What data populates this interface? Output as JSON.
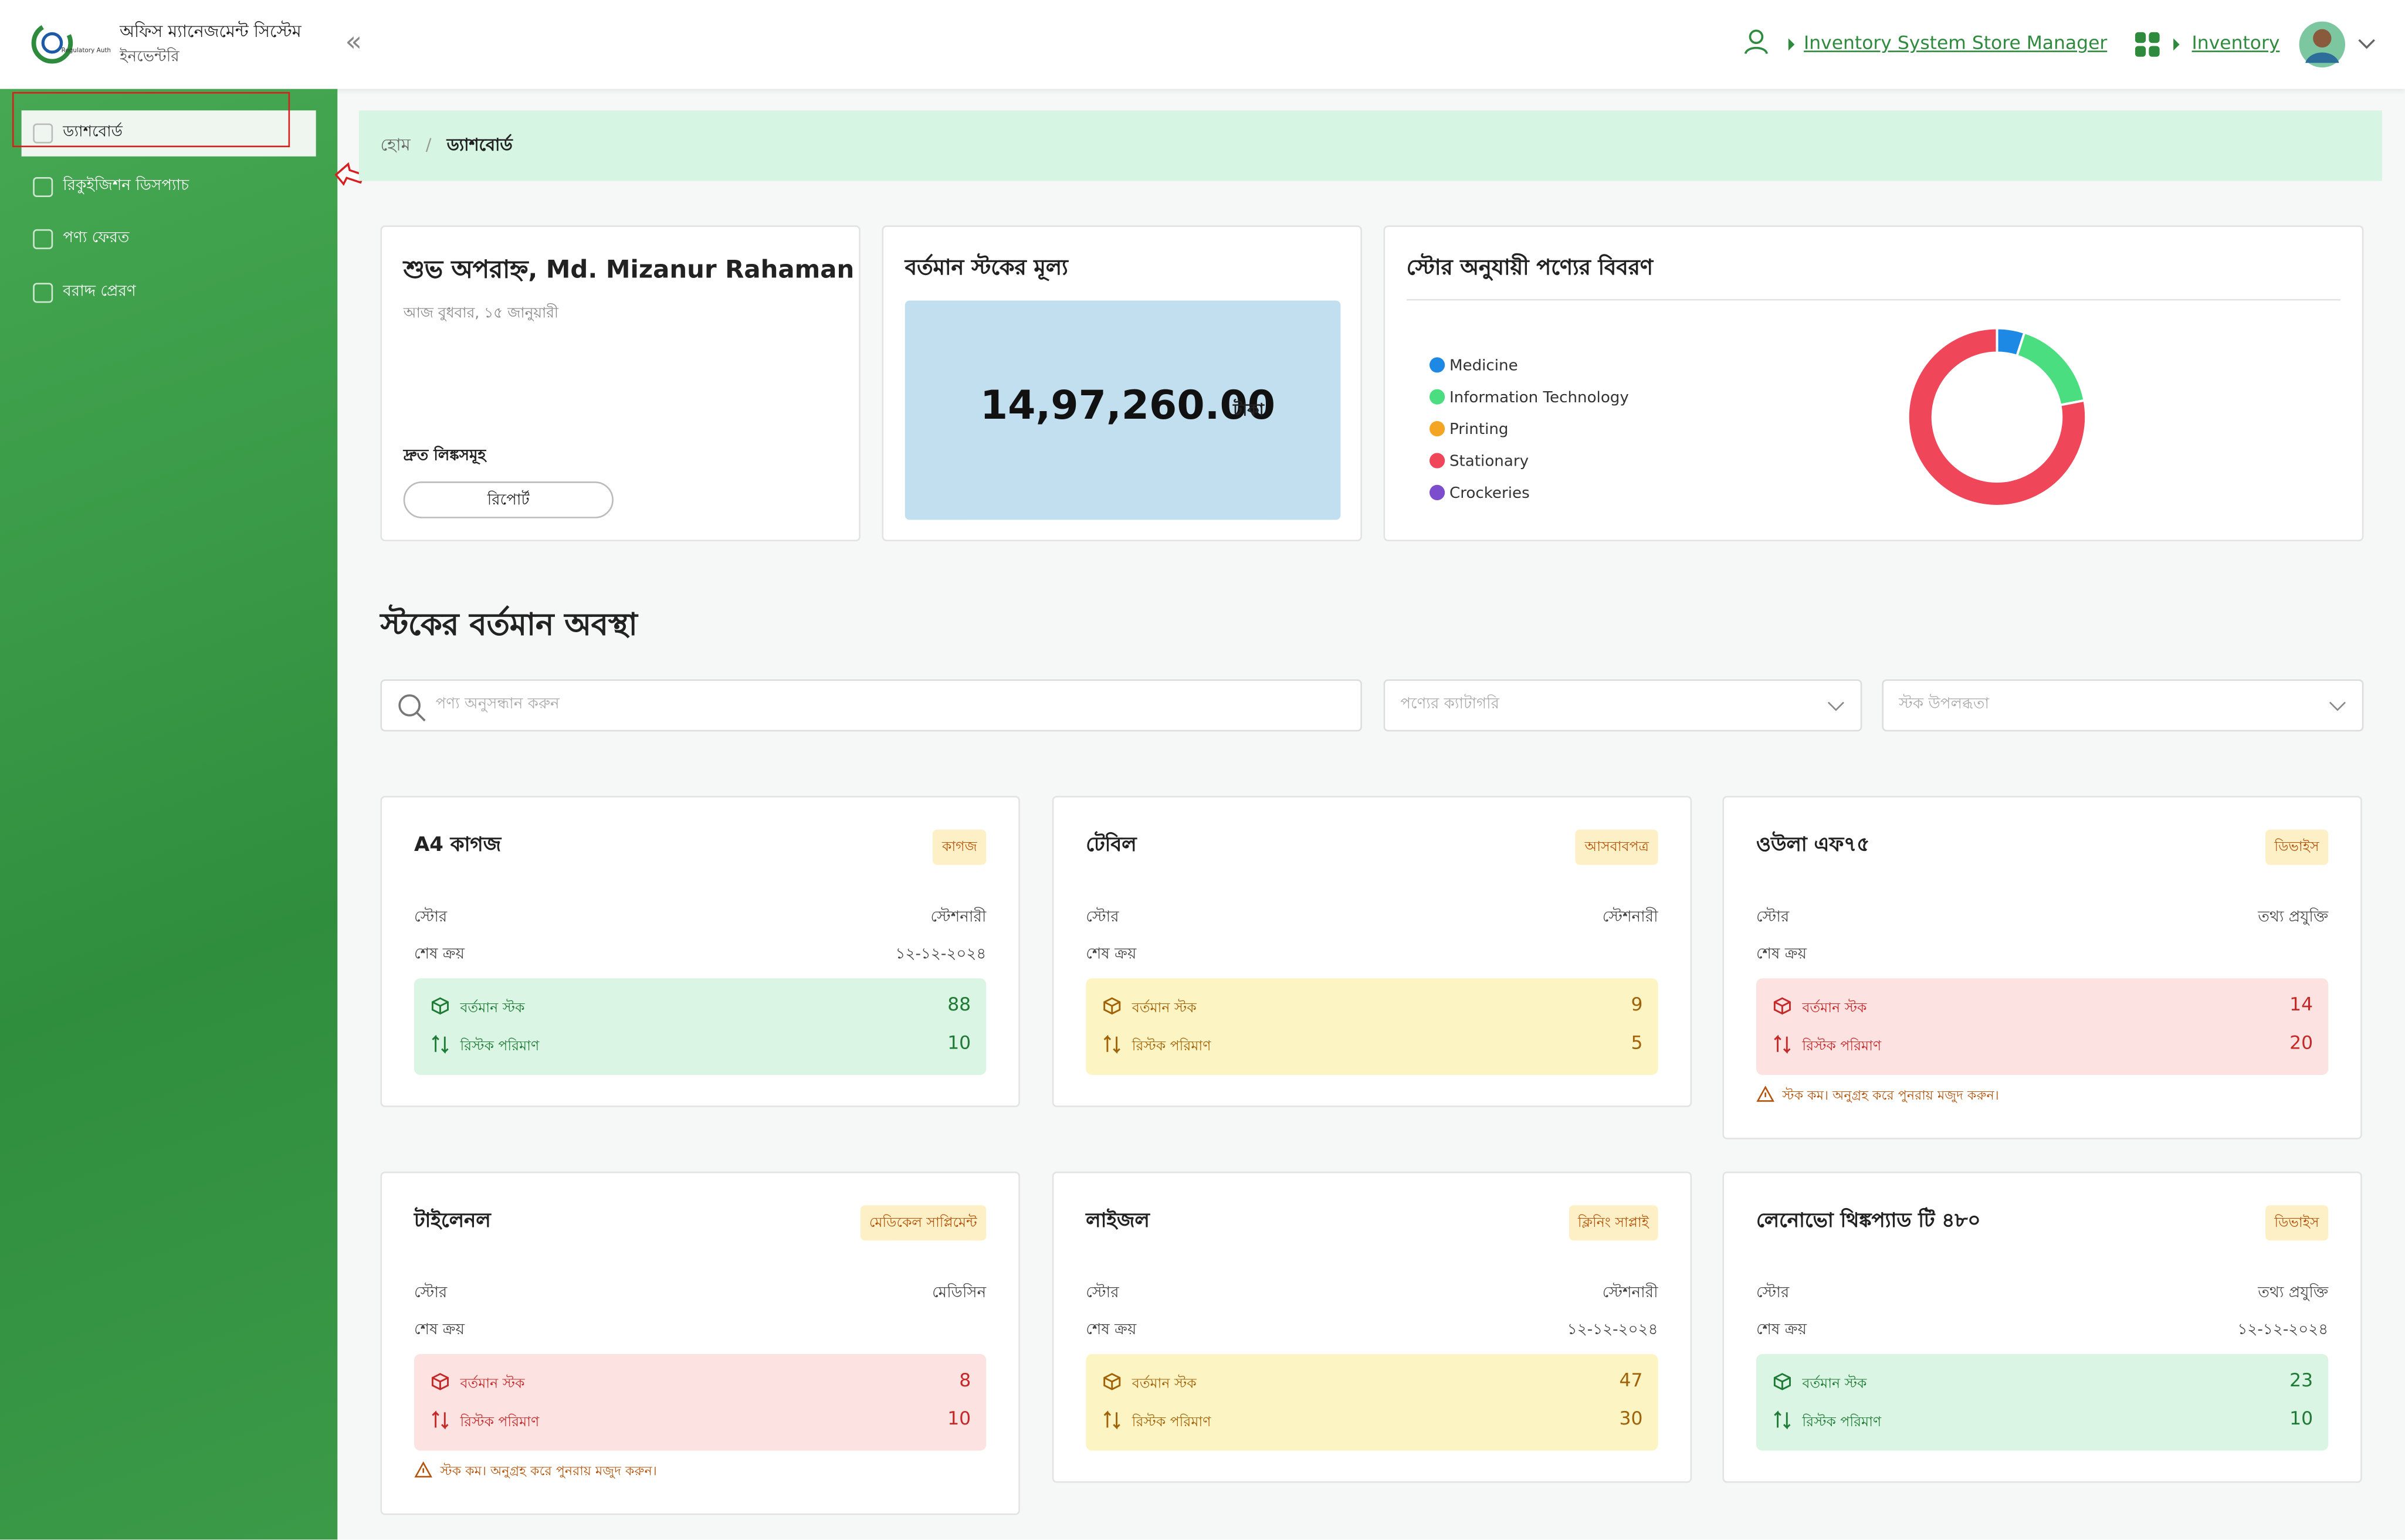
{
  "header": {
    "app_title": "অফিস ম্যানেজমেন্ট সিস্টেম",
    "app_subtitle": "ইনভেন্টরি",
    "role_link": "Inventory System Store Manager",
    "module_link": "Inventory"
  },
  "sidebar": {
    "items": [
      "ড্যাশবোর্ড",
      "রিকুইজিশন ডিসপ্যাচ",
      "পণ্য ফেরত",
      "বরাদ্দ প্রেরণ"
    ]
  },
  "breadcrumb": [
    "হোম",
    "ড্যাশবোর্ড"
  ],
  "greeting_card": {
    "greeting": "শুভ অপরাহ্ন, Md. Mizanur Rahaman",
    "date": "আজ বুধবার, ১৫ জানুয়ারী",
    "quick_links_title": "দ্রুত লিঙ্কসমূহ",
    "quick_link": "রিপোর্ট"
  },
  "stock_value_card": {
    "title": "বর্তমান স্টকের মূল্য",
    "value": "14,97,260.00",
    "unit": "টাকা"
  },
  "chart_data": {
    "type": "donut",
    "title": "স্টোর অনুযায়ী পণ্যের বিবরণ",
    "categories": [
      "Medicine",
      "Information Technology",
      "Printing",
      "Stationary",
      "Crockeries"
    ],
    "values": [
      5,
      17,
      0,
      78,
      0
    ],
    "colors": [
      "#1e88e5",
      "#4ade80",
      "#f5a524",
      "#f0465a",
      "#7c4dcc"
    ]
  },
  "stock_section": {
    "title": "স্টকের বর্তমান অবস্থা",
    "search_placeholder": "পণ্য অনুসন্ধান করুন",
    "category_placeholder": "পণ্যের ক্যাটাগরি",
    "availability_placeholder": "স্টক উপলব্ধতা",
    "labels": {
      "store": "স্টোর",
      "last_purchase": "শেষ ক্রয়",
      "current_stock": "বর্তমান স্টক",
      "restock": "রিস্টক পরিমাণ"
    },
    "low_stock_warning": "স্টক কম। অনুগ্রহ করে পুনরায় মজুদ করুন।"
  },
  "products": [
    {
      "name": "A4 কাগজ",
      "category": "কাগজ",
      "store": "স্টেশনারী",
      "last_purchase": "১২-১২-২০২৪",
      "current_stock": 88,
      "restock": 10
    },
    {
      "name": "টেবিল",
      "category": "আসবাবপত্র",
      "store": "স্টেশনারী",
      "current_stock": 9,
      "restock": 5
    },
    {
      "name": "ওউলা এফ৭৫",
      "category": "ডিভাইস",
      "store": "তথ্য প্রযুক্তি",
      "current_stock": 14,
      "restock": 20
    },
    {
      "name": "টাইলেনল",
      "category": "মেডিকেল সাপ্লিমেন্ট",
      "store": "মেডিসিন",
      "current_stock": 8,
      "restock": 10
    },
    {
      "name": "লাইজল",
      "category": "ক্লিনিং সাপ্লাই",
      "store": "স্টেশনারী",
      "last_purchase": "১২-১২-২০২৪",
      "current_stock": 47,
      "restock": 30
    },
    {
      "name": "লেনোভো থিঙ্কপ্যাড টি ৪৮০",
      "category": "ডিভাইস",
      "store": "তথ্য প্রযুক্তি",
      "last_purchase": "১২-১২-২০২৪",
      "current_stock": 23,
      "restock": 10
    }
  ]
}
